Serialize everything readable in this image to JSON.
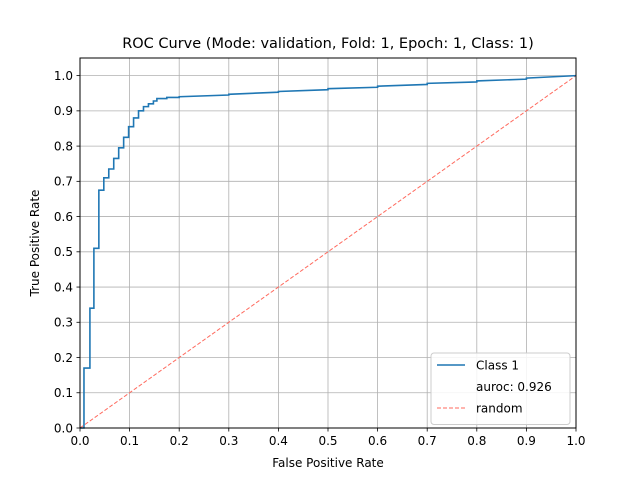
{
  "chart_data": {
    "type": "line",
    "title": "ROC Curve (Mode: validation, Fold: 1, Epoch: 1, Class: 1)",
    "xlabel": "False Positive Rate",
    "ylabel": "True Positive Rate",
    "xlim": [
      0,
      1
    ],
    "ylim": [
      0,
      1.05
    ],
    "x_ticks": [
      "0.0",
      "0.1",
      "0.2",
      "0.3",
      "0.4",
      "0.5",
      "0.6",
      "0.7",
      "0.8",
      "0.9",
      "1.0"
    ],
    "y_ticks": [
      "0.0",
      "0.1",
      "0.2",
      "0.3",
      "0.4",
      "0.5",
      "0.6",
      "0.7",
      "0.8",
      "0.9",
      "1.0"
    ],
    "grid": true,
    "legend_position": "lower-right",
    "series": [
      {
        "name": "Class 1",
        "color": "#1f77b4",
        "line_style": "solid",
        "step": true,
        "x": [
          0.0,
          0.0,
          0.008,
          0.008,
          0.02,
          0.02,
          0.028,
          0.028,
          0.038,
          0.038,
          0.048,
          0.048,
          0.058,
          0.058,
          0.068,
          0.068,
          0.078,
          0.078,
          0.088,
          0.088,
          0.098,
          0.098,
          0.108,
          0.108,
          0.118,
          0.118,
          0.128,
          0.128,
          0.138,
          0.138,
          0.148,
          0.148,
          0.155,
          0.155,
          0.175,
          0.175,
          0.2,
          0.2,
          0.3,
          0.3,
          0.4,
          0.4,
          0.5,
          0.5,
          0.6,
          0.6,
          0.7,
          0.7,
          0.8,
          0.8,
          0.9,
          0.9,
          1.0
        ],
        "y": [
          0.0,
          0.0,
          0.0,
          0.17,
          0.17,
          0.34,
          0.34,
          0.51,
          0.51,
          0.675,
          0.675,
          0.71,
          0.71,
          0.735,
          0.735,
          0.765,
          0.765,
          0.795,
          0.795,
          0.825,
          0.825,
          0.855,
          0.855,
          0.88,
          0.88,
          0.9,
          0.9,
          0.912,
          0.912,
          0.92,
          0.92,
          0.928,
          0.928,
          0.935,
          0.935,
          0.938,
          0.938,
          0.94,
          0.945,
          0.947,
          0.953,
          0.955,
          0.96,
          0.963,
          0.967,
          0.97,
          0.975,
          0.978,
          0.982,
          0.985,
          0.99,
          0.993,
          1.0
        ]
      },
      {
        "name": "random",
        "color": "#ff6a5e",
        "line_style": "dashed",
        "step": false,
        "x": [
          0.0,
          1.0
        ],
        "y": [
          0.0,
          1.0
        ]
      }
    ],
    "legend": {
      "items": [
        {
          "label": "Class 1",
          "swatch": "solid",
          "color": "#1f77b4"
        },
        {
          "label": "auroc: 0.926",
          "swatch": "none",
          "color": ""
        },
        {
          "label": "random",
          "swatch": "dashed",
          "color": "#ff6a5e"
        }
      ]
    }
  }
}
